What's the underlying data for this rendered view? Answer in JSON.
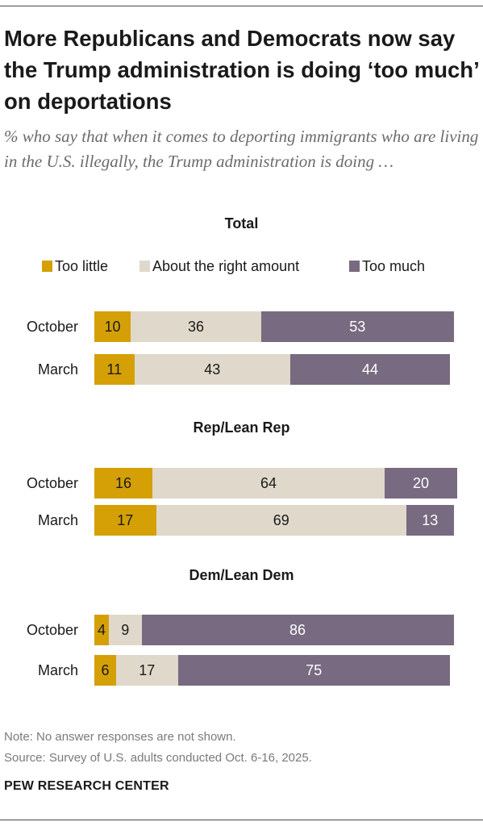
{
  "title": "More Republicans and Democrats now say the Trump administration is doing ‘too much’ on deportations",
  "subtitle": "% who say that when it comes to deporting immigrants who are living in the U.S. illegally, the Trump administration is doing …",
  "legend": {
    "items": [
      {
        "label": "Too little",
        "color": "#d4a006"
      },
      {
        "label": "About the right amount",
        "color": "#e0d9cb"
      },
      {
        "label": "Too much",
        "color": "#786a80"
      }
    ]
  },
  "note": "Note: No answer responses are not shown.",
  "source": "Source: Survey of U.S. adults conducted Oct. 6-16, 2025.",
  "org": "PEW RESEARCH CENTER",
  "chart_data": {
    "type": "bar",
    "orientation": "horizontal",
    "stacked": true,
    "xlim": [
      0,
      100
    ],
    "series_names": [
      "Too little",
      "About the right amount",
      "Too much"
    ],
    "colors": [
      "#d4a006",
      "#e0d9cb",
      "#786a80"
    ],
    "label_colors": [
      "#1a1a1a",
      "#1a1a1a",
      "#ffffff"
    ],
    "panels": [
      {
        "title": "Total",
        "rows": [
          {
            "label": "October",
            "values": [
              10,
              36,
              53
            ]
          },
          {
            "label": "March",
            "values": [
              11,
              43,
              44
            ]
          }
        ]
      },
      {
        "title": "Rep/Lean Rep",
        "rows": [
          {
            "label": "October",
            "values": [
              16,
              64,
              20
            ]
          },
          {
            "label": "March",
            "values": [
              17,
              69,
              13
            ]
          }
        ]
      },
      {
        "title": "Dem/Lean Dem",
        "rows": [
          {
            "label": "October",
            "values": [
              4,
              9,
              86
            ]
          },
          {
            "label": "March",
            "values": [
              6,
              17,
              75
            ]
          }
        ]
      }
    ]
  }
}
